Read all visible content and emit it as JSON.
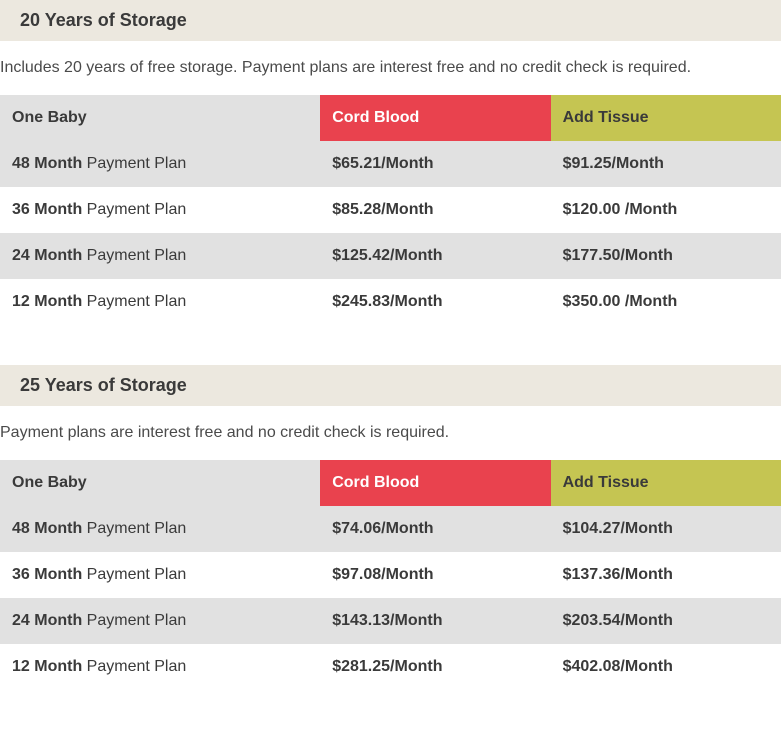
{
  "colors": {
    "header_bar_bg": "#ece8df",
    "table_header_left_bg": "#e1e1e1",
    "cord_blood_bg": "#e9424e",
    "cord_blood_fg": "#ffffff",
    "add_tissue_bg": "#c5c552",
    "add_tissue_fg": "#3a3a3a",
    "row_even_bg": "#e1e1e1",
    "row_odd_bg": "#ffffff",
    "text_color": "#3a3a3a"
  },
  "sections": [
    {
      "title": "20 Years of Storage",
      "description": "Includes 20 years of free storage. Payment plans are interest free and no credit check is required.",
      "table": {
        "col_left": "One Baby",
        "col_cord": "Cord Blood",
        "col_tissue": "Add Tissue",
        "rows": [
          {
            "plan_bold": "48 Month",
            "plan_rest": " Payment Plan",
            "cord": "$65.21/Month",
            "tissue": "$91.25/Month"
          },
          {
            "plan_bold": "36 Month",
            "plan_rest": " Payment Plan",
            "cord": "$85.28/Month",
            "tissue": "$120.00 /Month"
          },
          {
            "plan_bold": "24 Month",
            "plan_rest": " Payment Plan",
            "cord": "$125.42/Month",
            "tissue": "$177.50/Month"
          },
          {
            "plan_bold": "12 Month",
            "plan_rest": " Payment Plan",
            "cord": "$245.83/Month",
            "tissue": "$350.00 /Month"
          }
        ]
      }
    },
    {
      "title": "25 Years of Storage",
      "description": "Payment plans are interest free and no credit check is required.",
      "table": {
        "col_left": "One Baby",
        "col_cord": "Cord Blood",
        "col_tissue": "Add Tissue",
        "rows": [
          {
            "plan_bold": "48 Month",
            "plan_rest": " Payment Plan",
            "cord": "$74.06/Month",
            "tissue": "$104.27/Month"
          },
          {
            "plan_bold": "36 Month",
            "plan_rest": " Payment Plan",
            "cord": "$97.08/Month",
            "tissue": "$137.36/Month"
          },
          {
            "plan_bold": "24 Month",
            "plan_rest": " Payment Plan",
            "cord": "$143.13/Month",
            "tissue": "$203.54/Month"
          },
          {
            "plan_bold": "12 Month",
            "plan_rest": " Payment Plan",
            "cord": "$281.25/Month",
            "tissue": "$402.08/Month"
          }
        ]
      }
    }
  ]
}
